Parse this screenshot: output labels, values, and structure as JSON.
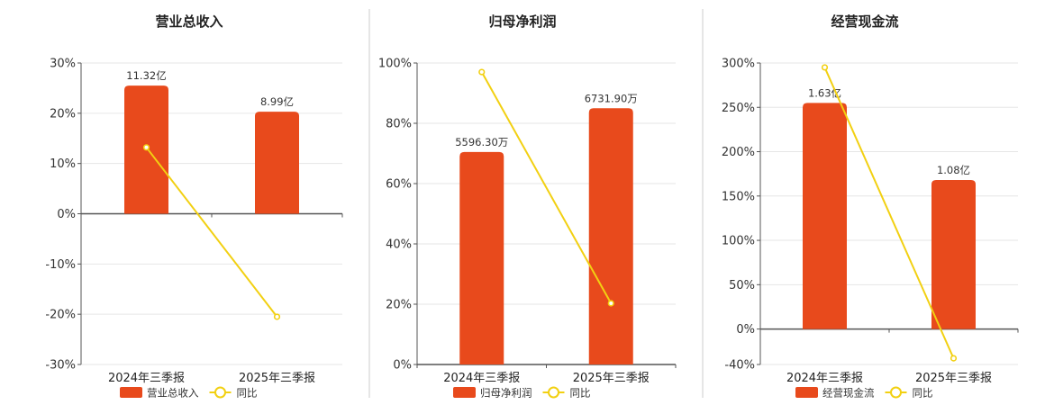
{
  "colors": {
    "bar": "#e84a1c",
    "line": "#f2d012",
    "grid": "#e6e6e6",
    "axis": "#555555",
    "divider": "#cccccc"
  },
  "chart_data": [
    {
      "type": "bar",
      "title": "营业总收入",
      "categories": [
        "2024年三季报",
        "2025年三季报"
      ],
      "bar_values": [
        25.5,
        20.3
      ],
      "bar_labels": [
        "11.32亿",
        "8.99亿"
      ],
      "line_values": [
        13.2,
        -20.5
      ],
      "ylim": [
        -30,
        30
      ],
      "yticks": [
        -30,
        -20,
        -10,
        0,
        10,
        20,
        30
      ],
      "ytick_labels": [
        "-30%",
        "-20%",
        "-10%",
        "0%",
        "10%",
        "20%",
        "30%"
      ],
      "legend": {
        "bar": "营业总收入",
        "line": "同比"
      }
    },
    {
      "type": "bar",
      "title": "归母净利润",
      "categories": [
        "2024年三季报",
        "2025年三季报"
      ],
      "bar_values": [
        70.5,
        85.0
      ],
      "bar_labels": [
        "5596.30万",
        "6731.90万"
      ],
      "line_values": [
        97.0,
        20.3
      ],
      "ylim": [
        0,
        100
      ],
      "yticks": [
        0,
        20,
        40,
        60,
        80,
        100
      ],
      "ytick_labels": [
        "0%",
        "20%",
        "40%",
        "60%",
        "80%",
        "100%"
      ],
      "legend": {
        "bar": "归母净利润",
        "line": "同比"
      }
    },
    {
      "type": "bar",
      "title": "经营现金流",
      "categories": [
        "2024年三季报",
        "2025年三季报"
      ],
      "bar_values": [
        255,
        168
      ],
      "bar_labels": [
        "1.63亿",
        "1.08亿"
      ],
      "line_values": [
        295,
        -33
      ],
      "ylim": [
        -40,
        300
      ],
      "yticks": [
        -40,
        0,
        50,
        100,
        150,
        200,
        250,
        300
      ],
      "ytick_labels": [
        "-40%",
        "0%",
        "50%",
        "100%",
        "150%",
        "200%",
        "250%",
        "300%"
      ],
      "legend": {
        "bar": "经营现金流",
        "line": "同比"
      }
    }
  ]
}
